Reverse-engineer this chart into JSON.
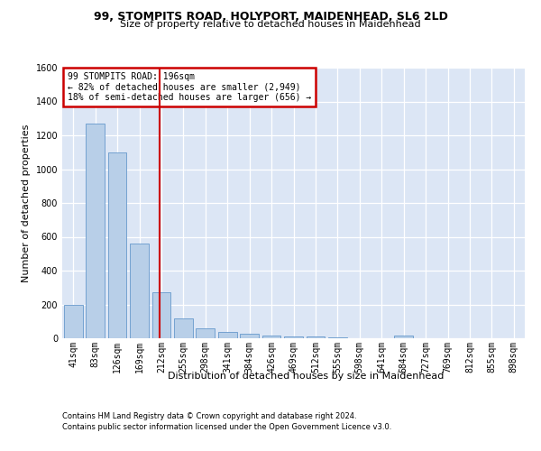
{
  "title_line1": "99, STOMPITS ROAD, HOLYPORT, MAIDENHEAD, SL6 2LD",
  "title_line2": "Size of property relative to detached houses in Maidenhead",
  "xlabel": "Distribution of detached houses by size in Maidenhead",
  "ylabel": "Number of detached properties",
  "footer_line1": "Contains HM Land Registry data © Crown copyright and database right 2024.",
  "footer_line2": "Contains public sector information licensed under the Open Government Licence v3.0.",
  "bar_labels": [
    "41sqm",
    "83sqm",
    "126sqm",
    "169sqm",
    "212sqm",
    "255sqm",
    "298sqm",
    "341sqm",
    "384sqm",
    "426sqm",
    "469sqm",
    "512sqm",
    "555sqm",
    "598sqm",
    "641sqm",
    "684sqm",
    "727sqm",
    "769sqm",
    "812sqm",
    "855sqm",
    "898sqm"
  ],
  "bar_values": [
    198,
    1270,
    1100,
    560,
    270,
    120,
    60,
    35,
    25,
    15,
    12,
    10,
    8,
    2,
    1,
    18,
    1,
    1,
    1,
    1,
    1
  ],
  "bar_color": "#b8cfe8",
  "bar_edgecolor": "#6699cc",
  "plot_bg_color": "#dce6f5",
  "grid_color": "#ffffff",
  "ylim_max": 1600,
  "yticks": [
    0,
    200,
    400,
    600,
    800,
    1000,
    1200,
    1400,
    1600
  ],
  "annotation_line1": "99 STOMPITS ROAD: 196sqm",
  "annotation_line2": "← 82% of detached houses are smaller (2,949)",
  "annotation_line3": "18% of semi-detached houses are larger (656) →",
  "vline_position": 3.93,
  "annotation_box_facecolor": "#ffffff",
  "annotation_box_edgecolor": "#cc0000",
  "vline_color": "#cc0000",
  "title1_fontsize": 9,
  "title2_fontsize": 8,
  "ylabel_fontsize": 8,
  "xlabel_fontsize": 8,
  "tick_fontsize": 7,
  "annot_fontsize": 7,
  "footer_fontsize": 6
}
